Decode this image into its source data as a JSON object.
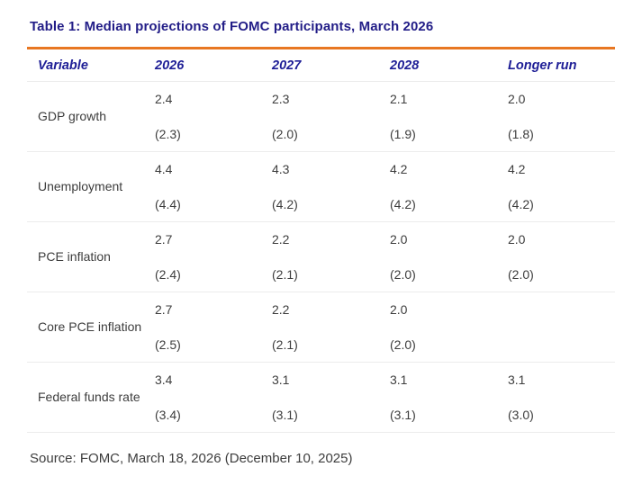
{
  "page": {
    "title": "Table 1: Median projections of FOMC participants, March 2026",
    "source": "Source: FOMC, March 18, 2026 (December 10, 2025)"
  },
  "colors": {
    "title_navy": "#221d87",
    "header_navy": "#1e1e96",
    "accent_orange": "#e87722",
    "body_text": "#3d3d3d",
    "divider_gray": "#ececec",
    "background": "#ffffff"
  },
  "table": {
    "columns": [
      "Variable",
      "2026",
      "2027",
      "2028",
      "Longer run"
    ],
    "rows": [
      {
        "variable": "GDP growth",
        "values": [
          "2.4",
          "2.3",
          "2.1",
          "2.0"
        ],
        "previous": [
          "(2.3)",
          "(2.0)",
          "(1.9)",
          "(1.8)"
        ]
      },
      {
        "variable": "Unemployment",
        "values": [
          "4.4",
          "4.3",
          "4.2",
          "4.2"
        ],
        "previous": [
          "(4.4)",
          "(4.2)",
          "(4.2)",
          "(4.2)"
        ]
      },
      {
        "variable": "PCE inflation",
        "values": [
          "2.7",
          "2.2",
          "2.0",
          "2.0"
        ],
        "previous": [
          "(2.4)",
          "(2.1)",
          "(2.0)",
          "(2.0)"
        ]
      },
      {
        "variable": "Core PCE inflation",
        "values": [
          "2.7",
          "2.2",
          "2.0",
          ""
        ],
        "previous": [
          "(2.5)",
          "(2.1)",
          "(2.0)",
          ""
        ]
      },
      {
        "variable": "Federal funds rate",
        "values": [
          "3.4",
          "3.1",
          "3.1",
          "3.1"
        ],
        "previous": [
          "(3.4)",
          "(3.1)",
          "(3.1)",
          "(3.0)"
        ]
      }
    ]
  },
  "chart_data": {
    "type": "table",
    "title": "Table 1: Median projections of FOMC participants, March 2026",
    "columns": [
      "Variable",
      "2026",
      "2027",
      "2028",
      "Longer run"
    ],
    "series": [
      {
        "name": "GDP growth",
        "median": [
          2.4,
          2.3,
          2.1,
          2.0
        ],
        "previous": [
          2.3,
          2.0,
          1.9,
          1.8
        ]
      },
      {
        "name": "Unemployment",
        "median": [
          4.4,
          4.3,
          4.2,
          4.2
        ],
        "previous": [
          4.4,
          4.2,
          4.2,
          4.2
        ]
      },
      {
        "name": "PCE inflation",
        "median": [
          2.7,
          2.2,
          2.0,
          2.0
        ],
        "previous": [
          2.4,
          2.1,
          2.0,
          2.0
        ]
      },
      {
        "name": "Core PCE inflation",
        "median": [
          2.7,
          2.2,
          2.0,
          null
        ],
        "previous": [
          2.5,
          2.1,
          2.0,
          null
        ]
      },
      {
        "name": "Federal funds rate",
        "median": [
          3.4,
          3.1,
          3.1,
          3.1
        ],
        "previous": [
          3.4,
          3.1,
          3.1,
          3.0
        ]
      }
    ],
    "note": "Source: FOMC, March 18, 2026 (December 10, 2025)"
  }
}
